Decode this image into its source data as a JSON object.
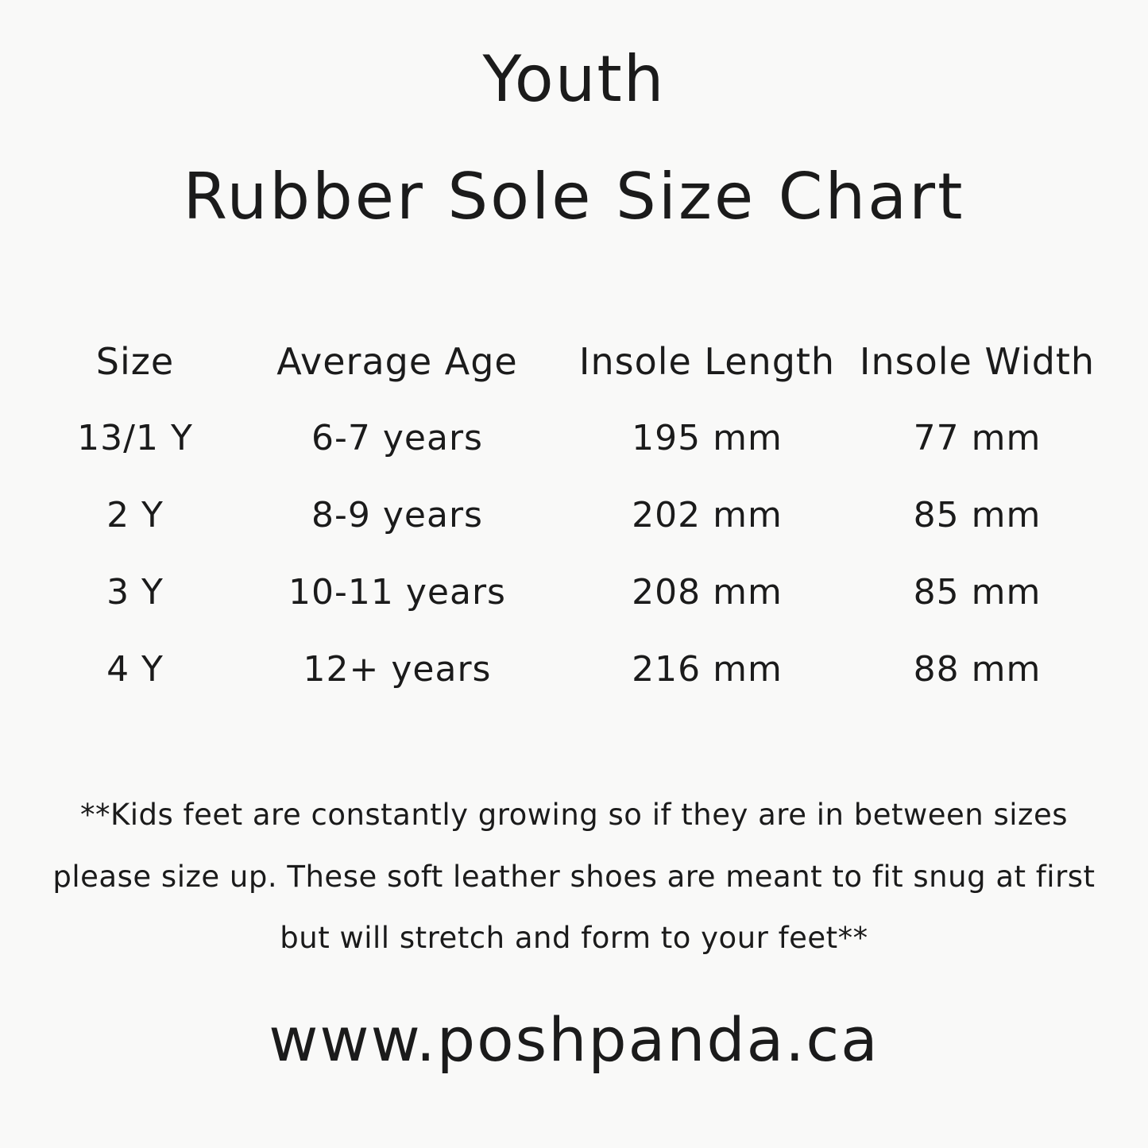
{
  "page": {
    "background_color": "#f9f9f8",
    "text_color": "#1b1b1b"
  },
  "title": {
    "line1": "Youth",
    "line2": "Rubber Sole Size Chart"
  },
  "chart_data": {
    "type": "table",
    "columns": [
      "Size",
      "Average Age",
      "Insole Length",
      "Insole Width"
    ],
    "rows": [
      [
        "13/1 Y",
        "6-7 years",
        "195 mm",
        "77 mm"
      ],
      [
        "2 Y",
        "8-9 years",
        "202 mm",
        "85 mm"
      ],
      [
        "3 Y",
        "10-11 years",
        "208 mm",
        "85 mm"
      ],
      [
        "4 Y",
        "12+ years",
        "216 mm",
        "88 mm"
      ]
    ],
    "units": {
      "insole_length": "mm",
      "insole_width": "mm"
    }
  },
  "footnote": {
    "line1": "**Kids feet are constantly growing so if they are in between sizes",
    "line2": "please size up. These soft leather shoes are meant to fit snug at first",
    "line3": "but will stretch and form to your feet**"
  },
  "footer": {
    "website": "www.poshpanda.ca"
  }
}
